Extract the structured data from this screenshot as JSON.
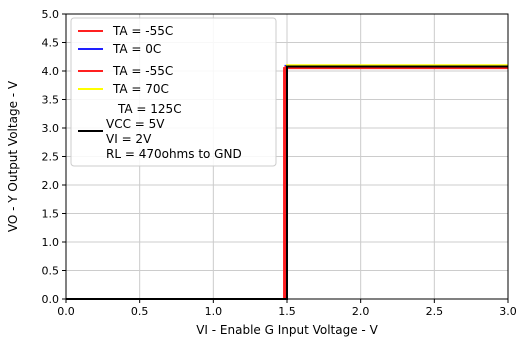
{
  "chart_data": {
    "type": "line",
    "xlabel": "VI - Enable G Input Voltage - V",
    "ylabel": "VO - Y Output Voltage - V",
    "xlim": [
      0.0,
      3.0
    ],
    "ylim": [
      0.0,
      5.0
    ],
    "x_ticks": [
      "0.0",
      "0.5",
      "1.0",
      "1.5",
      "2.0",
      "2.5",
      "3.0"
    ],
    "y_ticks": [
      "0.0",
      "0.5",
      "1.0",
      "1.5",
      "2.0",
      "2.5",
      "3.0",
      "3.5",
      "4.0",
      "4.5",
      "5.0"
    ],
    "grid": true,
    "legend_position": "top-left",
    "series": [
      {
        "name": "TA = -55C",
        "color": "#ff2020",
        "x": [
          0.0,
          1.48,
          1.48,
          3.0
        ],
        "y": [
          0.0,
          0.0,
          4.05,
          4.05
        ]
      },
      {
        "name": "TA = 0C",
        "color": "#2020ff",
        "x": [
          0.0,
          1.49,
          1.49,
          3.0
        ],
        "y": [
          0.0,
          0.0,
          4.09,
          4.09
        ]
      },
      {
        "name": "TA = -55C",
        "color": "#ff2020",
        "x": [
          0.0,
          1.49,
          1.49,
          3.0
        ],
        "y": [
          0.0,
          0.0,
          4.07,
          4.07
        ]
      },
      {
        "name": "TA = 70C",
        "color": "#ffff00",
        "x": [
          0.0,
          1.5,
          1.5,
          3.0
        ],
        "y": [
          0.0,
          0.0,
          4.1,
          4.1
        ]
      },
      {
        "name": "TA = 125C\nVCC = 5V\nVI = 2V\nRL = 470ohms to GND",
        "color": "#000000",
        "x": [
          0.0,
          1.5,
          1.5,
          3.0
        ],
        "y": [
          0.0,
          0.0,
          4.08,
          4.08
        ]
      }
    ]
  }
}
